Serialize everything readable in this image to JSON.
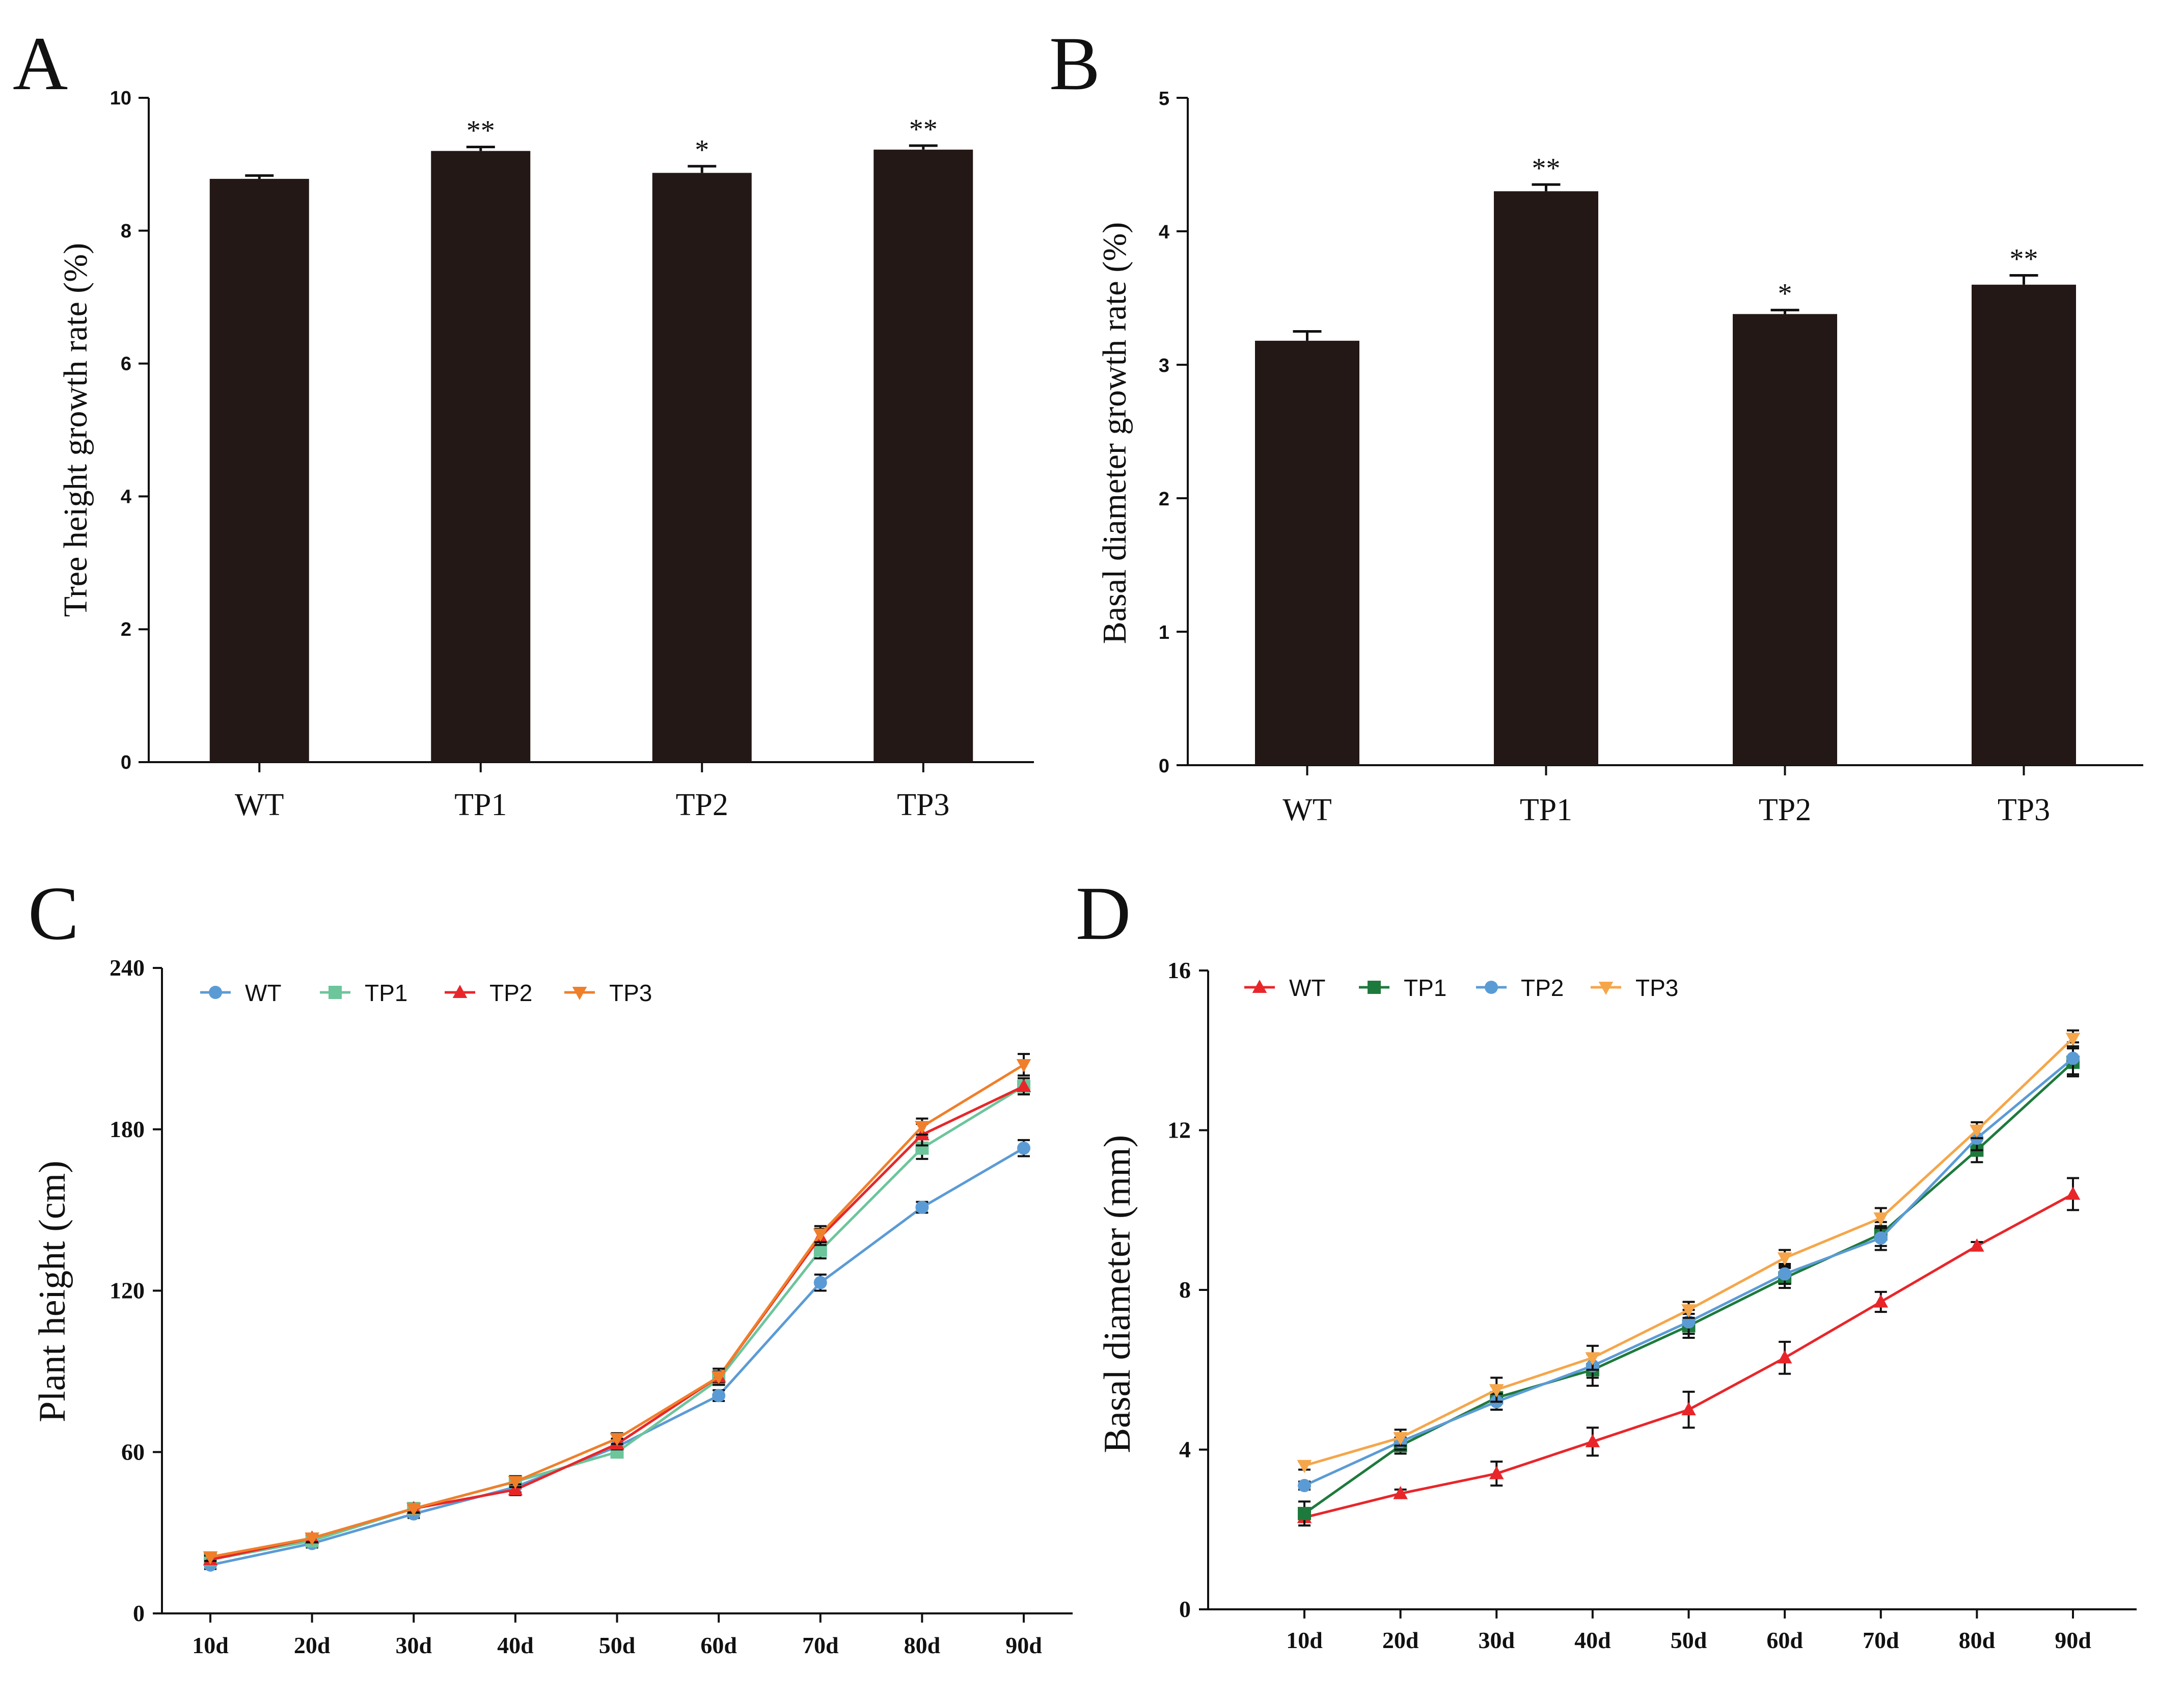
{
  "chart_data": [
    {
      "id": "A",
      "panel_label": "A",
      "type": "bar",
      "title": "",
      "xlabel": "",
      "ylabel": "Tree height growth rate (%)",
      "categories": [
        "WT",
        "TP1",
        "TP2",
        "TP3"
      ],
      "values": [
        8.78,
        9.2,
        8.87,
        9.22
      ],
      "errors": [
        0.05,
        0.06,
        0.1,
        0.06
      ],
      "significance": [
        "",
        "**",
        "*",
        "**"
      ],
      "ylim": [
        0,
        10
      ],
      "yticks": [
        0,
        2,
        4,
        6,
        8,
        10
      ],
      "bar_color": "#231815"
    },
    {
      "id": "B",
      "panel_label": "B",
      "type": "bar",
      "title": "",
      "xlabel": "",
      "ylabel": "Basal diameter growth rate (%)",
      "categories": [
        "WT",
        "TP1",
        "TP2",
        "TP3"
      ],
      "values": [
        3.18,
        4.3,
        3.38,
        3.6
      ],
      "errors": [
        0.07,
        0.05,
        0.03,
        0.07
      ],
      "significance": [
        "",
        "**",
        "*",
        "**"
      ],
      "ylim": [
        0,
        5
      ],
      "yticks": [
        0,
        1,
        2,
        3,
        4,
        5
      ],
      "bar_color": "#231815"
    },
    {
      "id": "C",
      "panel_label": "C",
      "type": "line",
      "title": "",
      "xlabel": "",
      "ylabel": "Plant height (cm)",
      "categories": [
        "10d",
        "20d",
        "30d",
        "40d",
        "50d",
        "60d",
        "70d",
        "80d",
        "90d"
      ],
      "ylim": [
        0,
        240
      ],
      "yticks": [
        0,
        60,
        120,
        180,
        240
      ],
      "legend_position": "top-left",
      "series": [
        {
          "name": "WT",
          "color": "#5b9bd5",
          "marker": "circle",
          "values": [
            18,
            26,
            37,
            47,
            62,
            81,
            123,
            151,
            173
          ],
          "errors": [
            1.5,
            1.5,
            1.5,
            2,
            2,
            2,
            3,
            2,
            3
          ]
        },
        {
          "name": "TP1",
          "color": "#6cc59b",
          "marker": "square",
          "values": [
            20,
            27,
            39,
            49,
            60,
            87,
            135,
            173,
            196
          ],
          "errors": [
            1.5,
            1.5,
            1.5,
            2,
            2,
            2,
            3,
            4,
            3
          ]
        },
        {
          "name": "TP2",
          "color": "#e8262a",
          "marker": "triangle-up",
          "values": [
            20,
            28,
            39,
            46,
            63,
            88,
            140,
            178,
            196
          ],
          "errors": [
            1.5,
            1.5,
            1.5,
            2,
            2,
            2,
            3,
            4,
            3
          ]
        },
        {
          "name": "TP3",
          "color": "#f07f2a",
          "marker": "triangle-down",
          "values": [
            21,
            28,
            39,
            49,
            65,
            88,
            141,
            181,
            204
          ],
          "errors": [
            1.5,
            1.5,
            1.5,
            2,
            2,
            3,
            3,
            3,
            4
          ]
        }
      ]
    },
    {
      "id": "D",
      "panel_label": "D",
      "type": "line",
      "title": "",
      "xlabel": "",
      "ylabel": "Basal diameter (mm)",
      "categories": [
        "10d",
        "20d",
        "30d",
        "40d",
        "50d",
        "60d",
        "70d",
        "80d",
        "90d"
      ],
      "ylim": [
        0,
        16
      ],
      "yticks": [
        0,
        4,
        8,
        12,
        16
      ],
      "legend_position": "top-left",
      "series": [
        {
          "name": "WT",
          "color": "#e8262a",
          "marker": "triangle-up",
          "values": [
            2.3,
            2.9,
            3.4,
            4.2,
            5.0,
            6.3,
            7.7,
            9.1,
            10.4
          ],
          "errors": [
            0.2,
            0.1,
            0.3,
            0.35,
            0.45,
            0.4,
            0.25,
            0.1,
            0.4
          ]
        },
        {
          "name": "TP1",
          "color": "#1e7a3c",
          "marker": "square",
          "values": [
            2.4,
            4.1,
            5.3,
            6.0,
            7.1,
            8.3,
            9.4,
            11.5,
            13.7
          ],
          "errors": [
            0.3,
            0.2,
            0.3,
            0.4,
            0.3,
            0.25,
            0.3,
            0.3,
            0.35
          ]
        },
        {
          "name": "TP2",
          "color": "#5b9bd5",
          "marker": "circle",
          "values": [
            3.1,
            4.2,
            5.2,
            6.1,
            7.2,
            8.4,
            9.3,
            11.8,
            13.8
          ],
          "errors": [
            0.1,
            0.2,
            0.2,
            0.3,
            0.3,
            0.25,
            0.3,
            0.3,
            0.4
          ]
        },
        {
          "name": "TP3",
          "color": "#f5a64a",
          "marker": "triangle-down",
          "values": [
            3.6,
            4.3,
            5.5,
            6.3,
            7.5,
            8.8,
            9.8,
            12.0,
            14.3
          ],
          "errors": [
            0.1,
            0.2,
            0.3,
            0.3,
            0.2,
            0.2,
            0.25,
            0.2,
            0.2
          ]
        }
      ]
    }
  ]
}
